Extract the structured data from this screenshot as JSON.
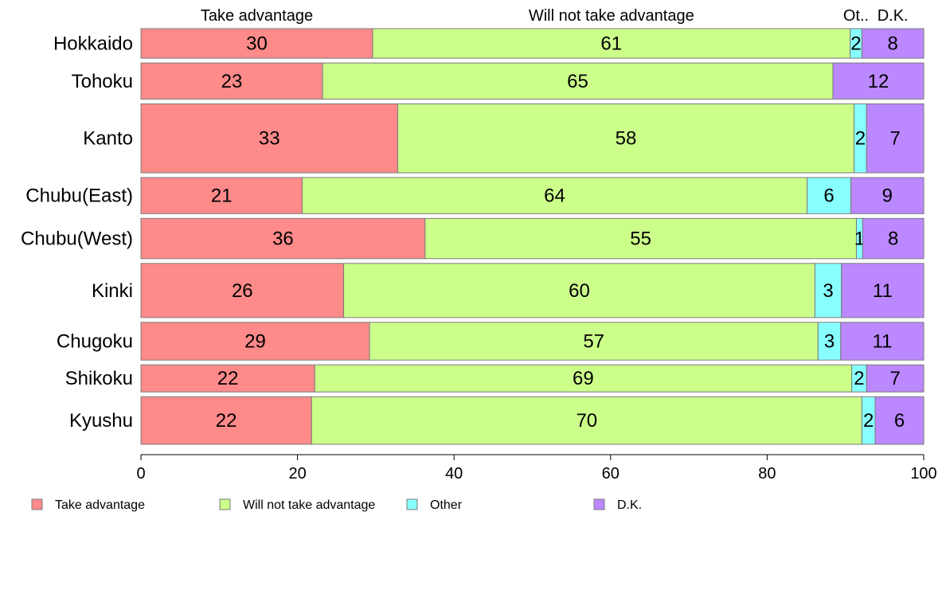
{
  "chart_data": {
    "type": "bar",
    "orientation": "horizontal",
    "stacked": true,
    "percent": true,
    "categories": [
      "Hokkaido",
      "Tohoku",
      "Kanto",
      "Chubu(East)",
      "Chubu(West)",
      "Kinki",
      "Chugoku",
      "Shikoku",
      "Kyushu"
    ],
    "series": [
      {
        "name": "Take advantage",
        "color": "#ff8a8a",
        "values": [
          29.6,
          23.2,
          32.8,
          20.6,
          36.3,
          25.9,
          29.2,
          22.2,
          21.8
        ]
      },
      {
        "name": "Will not take advantage",
        "color": "#ccff8a",
        "values": [
          61.0,
          65.2,
          58.3,
          64.5,
          55.1,
          60.2,
          57.3,
          68.6,
          70.3
        ]
      },
      {
        "name": "Other",
        "color": "#88ffff",
        "values": [
          1.5,
          0,
          1.6,
          5.6,
          0.8,
          3.4,
          2.9,
          1.9,
          1.7
        ]
      },
      {
        "name": "D.K.",
        "color": "#bb88ff",
        "values": [
          7.9,
          11.6,
          7.3,
          9.3,
          7.8,
          10.5,
          10.6,
          7.3,
          6.2
        ]
      }
    ],
    "data_labels": [
      [
        "30",
        "61",
        "2",
        "8"
      ],
      [
        "23",
        "65",
        "",
        "12"
      ],
      [
        "33",
        "58",
        "2",
        "7"
      ],
      [
        "21",
        "64",
        "6",
        "9"
      ],
      [
        "36",
        "55",
        "1",
        "8"
      ],
      [
        "26",
        "60",
        "3",
        "11"
      ],
      [
        "29",
        "57",
        "3",
        "11"
      ],
      [
        "22",
        "69",
        "2",
        "7"
      ],
      [
        "22",
        "70",
        "2",
        "6"
      ]
    ],
    "row_weights": [
      36,
      44,
      84,
      44,
      49,
      66,
      46,
      33,
      58
    ],
    "top_labels": [
      "Take advantage",
      "Will not take advantage",
      "Ot..",
      "D.K."
    ],
    "xlim": [
      0,
      100
    ],
    "xticks": [
      "0",
      "20",
      "40",
      "60",
      "80",
      "100"
    ],
    "grid": false,
    "legend_position": "bottom"
  }
}
